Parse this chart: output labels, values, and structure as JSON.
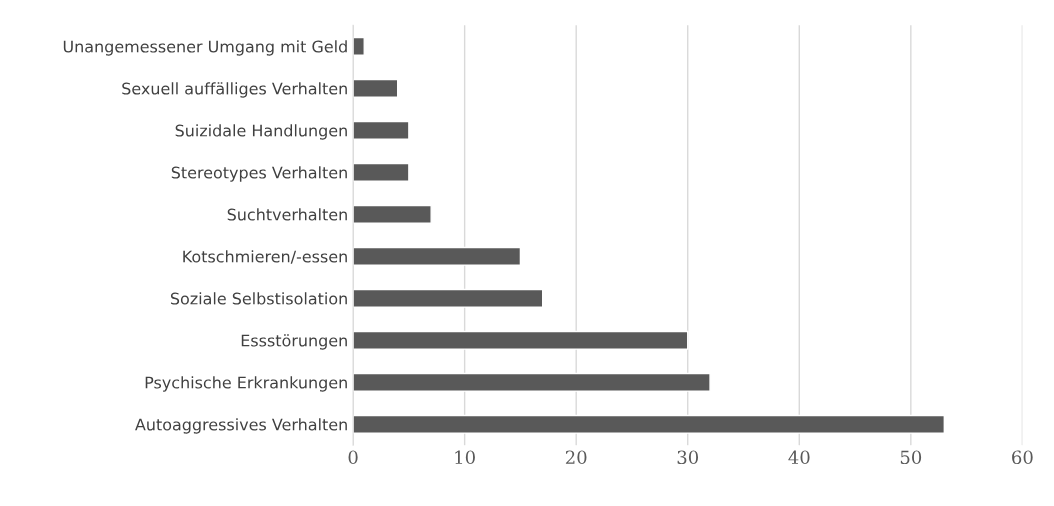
{
  "chart_data": {
    "type": "bar",
    "orientation": "horizontal",
    "categories": [
      "Unangemessener Umgang mit Geld",
      "Sexuell auffälliges Verhalten",
      "Suizidale Handlungen",
      "Stereotypes Verhalten",
      "Suchtverhalten",
      "Kotschmieren/-essen",
      "Soziale Selbstisolation",
      "Essstörungen",
      "Psychische Erkrankungen",
      "Autoaggressives Verhalten"
    ],
    "values": [
      1,
      4,
      5,
      5,
      7,
      15,
      17,
      30,
      32,
      53
    ],
    "color": "#595959",
    "xlim": [
      0,
      60
    ],
    "xticks": [
      0,
      10,
      20,
      30,
      40,
      50,
      60
    ],
    "grid": "x",
    "legend": false
  }
}
